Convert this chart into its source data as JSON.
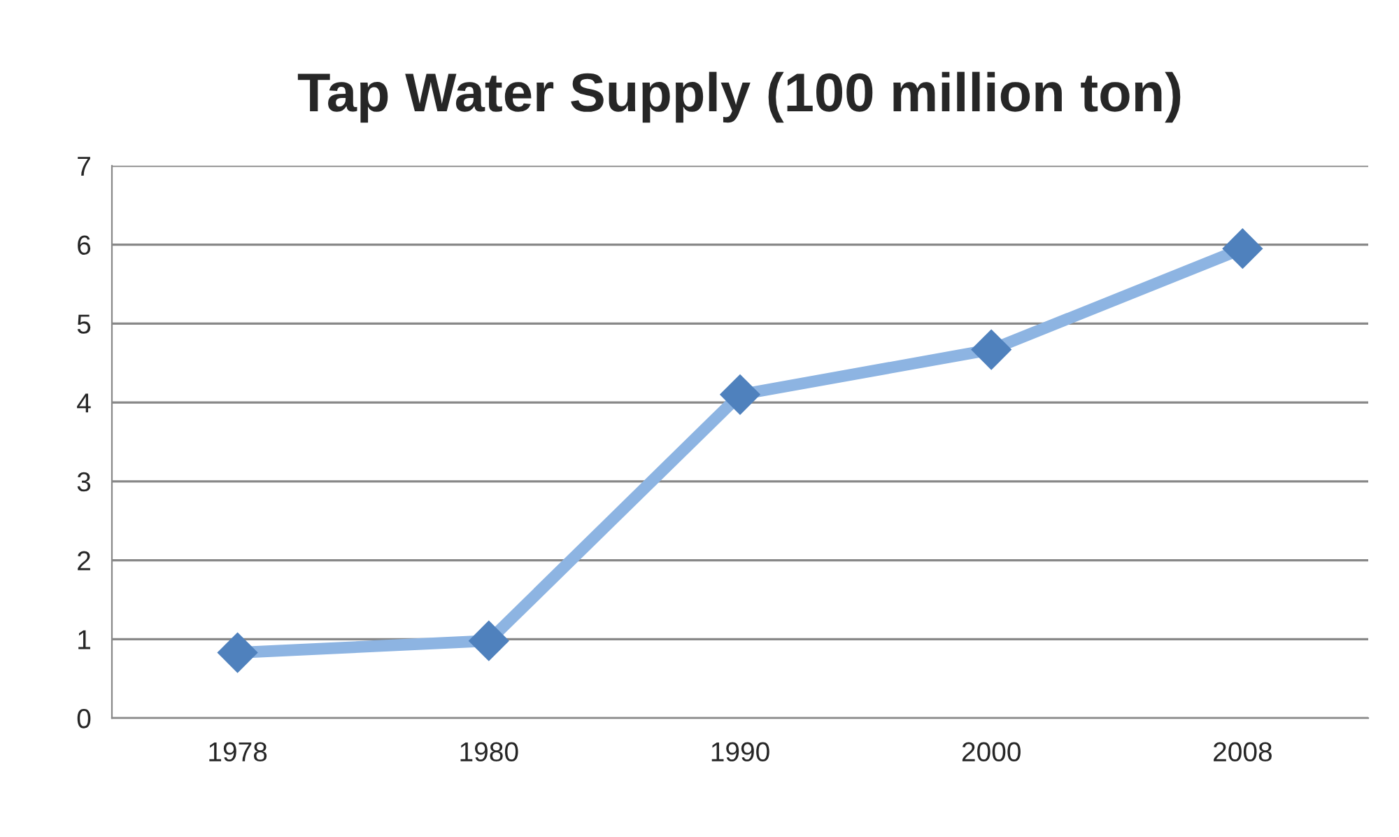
{
  "chart_data": {
    "type": "line",
    "title": "Tap Water Supply (100 million ton)",
    "categories": [
      "1978",
      "1980",
      "1990",
      "2000",
      "2008"
    ],
    "series": [
      {
        "color": "#8db4e2",
        "colors": [
          "#4f81bd",
          "#4f81bd",
          "#4f81bd",
          "#4f81bd",
          "#4f81bd"
        ],
        "values": [
          0.83,
          0.98,
          4.1,
          4.67,
          5.95
        ]
      }
    ],
    "ylim": [
      0,
      7
    ],
    "yticks": [
      0,
      1,
      2,
      3,
      4,
      5,
      6,
      7
    ],
    "grid": "y",
    "marker": "diamond",
    "line_style": "solid"
  }
}
